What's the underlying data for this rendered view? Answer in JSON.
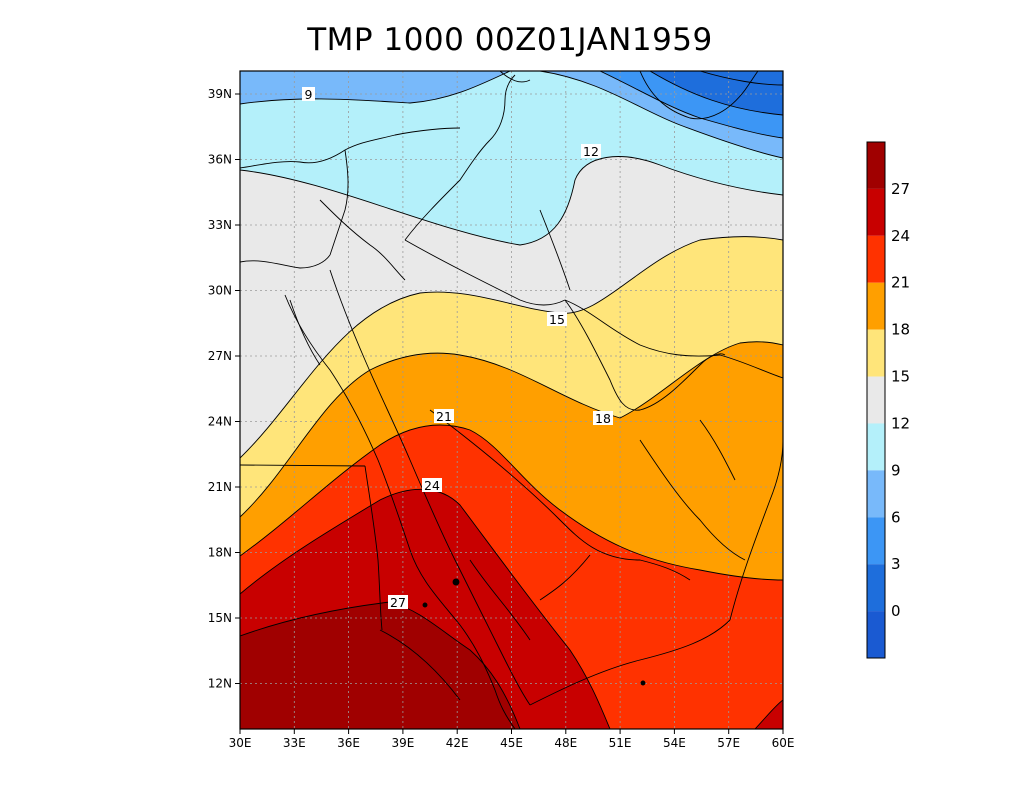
{
  "title": "TMP 1000 00Z01JAN1959",
  "x_ticks": [
    "30E",
    "33E",
    "36E",
    "39E",
    "42E",
    "45E",
    "48E",
    "51E",
    "54E",
    "57E",
    "60E"
  ],
  "y_ticks": [
    "39N",
    "36N",
    "33N",
    "30N",
    "27N",
    "24N",
    "21N",
    "18N",
    "15N",
    "12N"
  ],
  "colorbar": {
    "labels": [
      "27",
      "24",
      "21",
      "18",
      "15",
      "12",
      "9",
      "6",
      "3",
      "0"
    ],
    "colors": [
      "#a00000",
      "#c80000",
      "#ff3200",
      "#ff9f00",
      "#ffe57a",
      "#e9e9e9",
      "#b4f0fa",
      "#78b9fa",
      "#3c96f5",
      "#1e6edc",
      "#1a5ad2"
    ]
  },
  "contour_labels": [
    "9",
    "12",
    "15",
    "18",
    "21",
    "24",
    "27"
  ],
  "chart_data": {
    "type": "heatmap",
    "title": "TMP 1000 00Z01JAN1959",
    "variable": "TMP",
    "level": "1000",
    "time": "00Z01JAN1959",
    "lon_range": [
      30,
      60
    ],
    "lat_range": [
      9.7,
      39.9
    ],
    "contour_levels": [
      0,
      3,
      6,
      9,
      12,
      15,
      18,
      21,
      24,
      27
    ],
    "labeled_contours": [
      9,
      12,
      15,
      18,
      21,
      24,
      27
    ],
    "grid": true
  }
}
